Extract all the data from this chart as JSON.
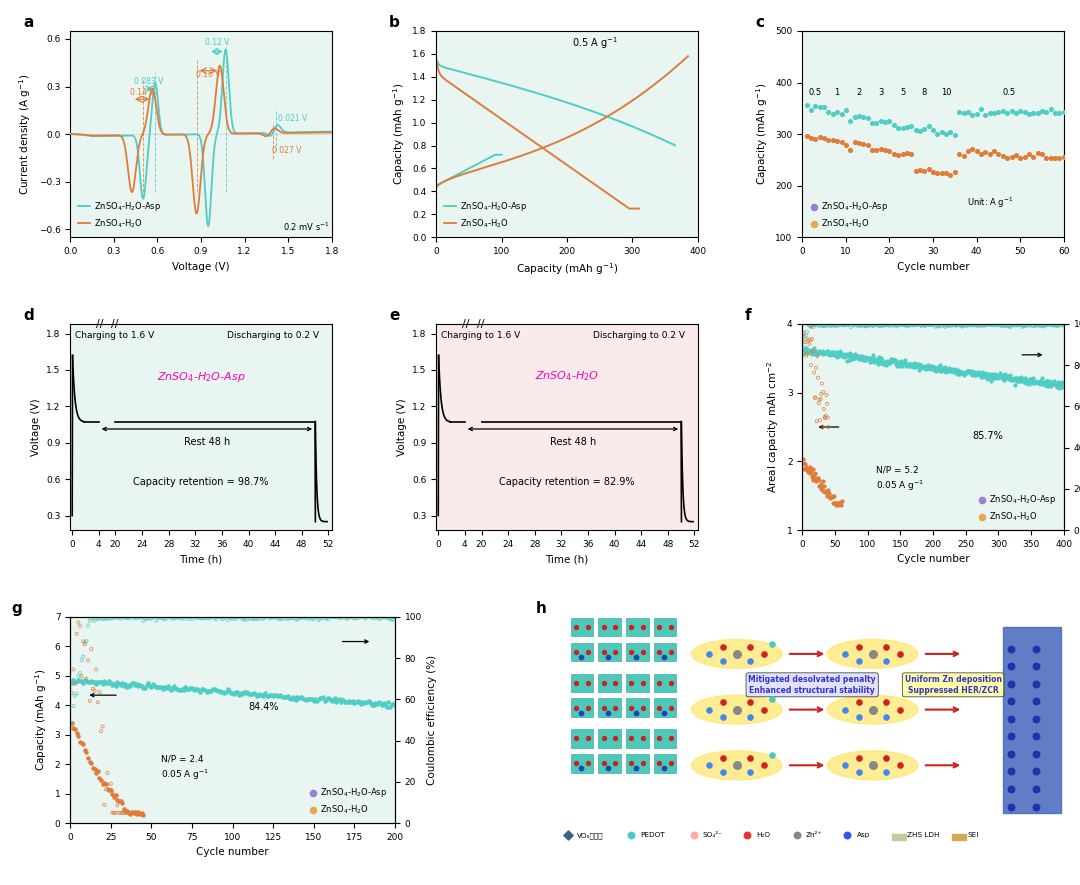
{
  "colors": {
    "cyan": "#4ECDC4",
    "orange": "#E07B39",
    "bg_green": "#E8F5F0",
    "bg_pink": "#FAEAEA",
    "annotation_cyan": "#4ECDC4",
    "annotation_orange": "#E07B39",
    "magenta": "#FF00BB"
  },
  "panel_labels": [
    "a",
    "b",
    "c",
    "d",
    "e",
    "f",
    "g",
    "h"
  ]
}
